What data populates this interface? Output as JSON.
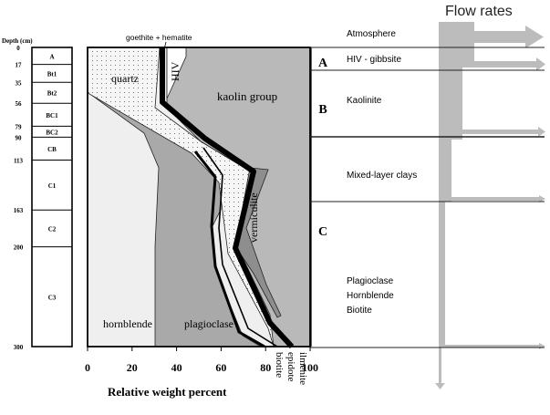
{
  "chart_data": {
    "type": "area",
    "title": "",
    "xlabel": "Relative weight percent",
    "ylabel": "Depth (cm)",
    "x_ticks": [
      "0",
      "20",
      "40",
      "60",
      "80",
      "100"
    ],
    "y_ticks": [
      "0",
      "17",
      "35",
      "56",
      "79",
      "90",
      "113",
      "163",
      "200",
      "300"
    ],
    "xlim": [
      0,
      100
    ],
    "ylim": [
      0,
      300
    ],
    "horizons": [
      "A",
      "Bt1",
      "Bt2",
      "BC1",
      "BC2",
      "CB",
      "C1",
      "C2",
      "C3"
    ],
    "zones": [
      "A",
      "B",
      "C"
    ],
    "mineral_labels": {
      "quartz": "quartz",
      "hiv": "HIV",
      "goethite_hematite": "goethite + hematite",
      "kaolin": "kaolin group",
      "vermiculite": "vermiculite",
      "hornblende": "hornblende",
      "plagioclase": "plagioclase",
      "biotite": "biotite",
      "epidote": "epidote",
      "ilmenite": "ilmenite"
    }
  },
  "annotations": {
    "flow_title": "Flow rates",
    "atmosphere": "Atmosphere",
    "hiv_gibbsite": "HIV - gibbsite",
    "kaolinite": "Kaolinite",
    "mixed_layer": "Mixed-layer clays",
    "primary_1": "Plagioclase",
    "primary_2": "Hornblende",
    "primary_3": "Biotite"
  },
  "colors": {
    "flow_gray": "#bcbcbc",
    "hornblende": "#efefef",
    "plagioclase": "#a9a9a9",
    "kaolin": "#b9b9b9",
    "quartz": "#f4f4f4",
    "vermiculite": "#8e8e8e"
  }
}
